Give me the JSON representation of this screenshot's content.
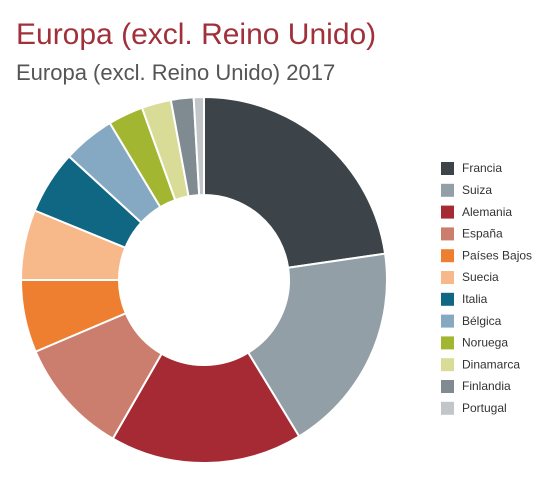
{
  "chart_data": {
    "type": "donut",
    "title": "Europa (excl. Reino Unido)",
    "subtitle": "Europa (excl. Reino Unido) 2017",
    "categories": [
      "Francia",
      "Suiza",
      "Alemania",
      "España",
      "Países Bajos",
      "Suecia",
      "Italia",
      "Bélgica",
      "Noruega",
      "Dinamarca",
      "Finlandia",
      "Portugal"
    ],
    "values": [
      22.7,
      18.6,
      17,
      10.3,
      6.4,
      6.2,
      5.6,
      4.6,
      3.1,
      2.6,
      2,
      0.9
    ],
    "colors": [
      "#3d4449",
      "#939fa6",
      "#a52a33",
      "#cc7e6e",
      "#ee7f31",
      "#f7b98a",
      "#0f6784",
      "#86a9c3",
      "#a3b631",
      "#d9dc97",
      "#808b91",
      "#c2c6c9"
    ],
    "legend": "right"
  }
}
